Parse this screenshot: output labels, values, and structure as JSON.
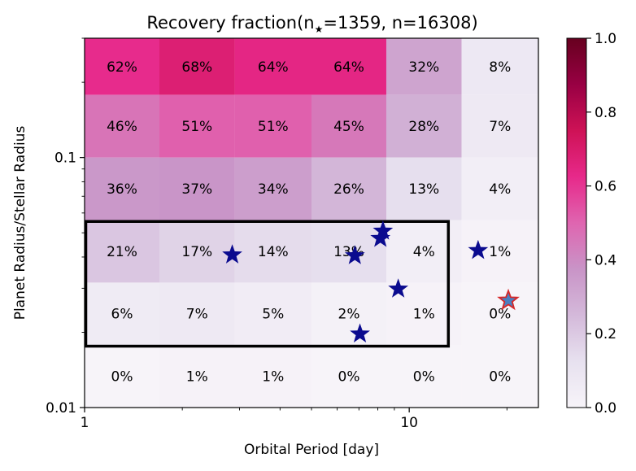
{
  "chart_data": {
    "type": "heatmap",
    "title_prefix": "Recovery fraction(n",
    "title_star": "★",
    "title_suffix": "=1359, n=16308)",
    "xlabel": "Orbital Period [day]",
    "ylabel": "Planet Radius/Stellar Radius",
    "x_scale": "log",
    "y_scale": "log",
    "xlim": [
      1,
      25
    ],
    "ylim": [
      0.01,
      0.3
    ],
    "x_ticklabels": [
      {
        "value": 1,
        "label": "1"
      },
      {
        "value": 10,
        "label": "10"
      }
    ],
    "y_ticklabels": [
      {
        "value": 0.1,
        "label": "0.1"
      },
      {
        "value": 0.01,
        "label": "0.01"
      }
    ],
    "x_bin_edges": [
      1,
      1.7,
      2.9,
      5.0,
      8.5,
      14.5,
      25
    ],
    "y_bin_edges": [
      0.01,
      0.0178,
      0.0316,
      0.0562,
      0.1,
      0.178,
      0.3
    ],
    "cells": [
      [
        "62%",
        "68%",
        "64%",
        "64%",
        "32%",
        "8%"
      ],
      [
        "46%",
        "51%",
        "51%",
        "45%",
        "28%",
        "7%"
      ],
      [
        "36%",
        "37%",
        "34%",
        "26%",
        "13%",
        "4%"
      ],
      [
        "21%",
        "17%",
        "14%",
        "13%",
        "4%",
        "1%"
      ],
      [
        "6%",
        "7%",
        "5%",
        "2%",
        "1%",
        "0%"
      ],
      [
        "0%",
        "1%",
        "1%",
        "0%",
        "0%",
        "0%"
      ]
    ],
    "stars": [
      {
        "x": 2.85,
        "y": 0.0408
      },
      {
        "x": 6.8,
        "y": 0.0405
      },
      {
        "x": 8.15,
        "y": 0.0475
      },
      {
        "x": 8.3,
        "y": 0.0508
      },
      {
        "x": 9.25,
        "y": 0.0298
      },
      {
        "x": 7.05,
        "y": 0.0197
      },
      {
        "x": 16.3,
        "y": 0.0425
      }
    ],
    "highlight_star": {
      "x": 20.2,
      "y": 0.0268,
      "fill": "#4a7fc1",
      "stroke": "#d62728"
    },
    "star_color": "#0b0b8f",
    "box": {
      "x": [
        1,
        13.2
      ],
      "y": [
        0.0176,
        0.0555
      ]
    },
    "colorbar": {
      "min": 0,
      "max": 1,
      "ticks": [
        {
          "value": 0.0,
          "label": "0.0"
        },
        {
          "value": 0.2,
          "label": "0.2"
        },
        {
          "value": 0.4,
          "label": "0.4"
        },
        {
          "value": 0.6,
          "label": "0.6"
        },
        {
          "value": 0.8,
          "label": "0.8"
        },
        {
          "value": 1.0,
          "label": "1.0"
        }
      ],
      "colormap": [
        "#f7f4f9",
        "#e7e1ef",
        "#d4b9da",
        "#c994c7",
        "#df65b0",
        "#e7298a",
        "#ce1256",
        "#980043",
        "#67001f"
      ]
    }
  }
}
